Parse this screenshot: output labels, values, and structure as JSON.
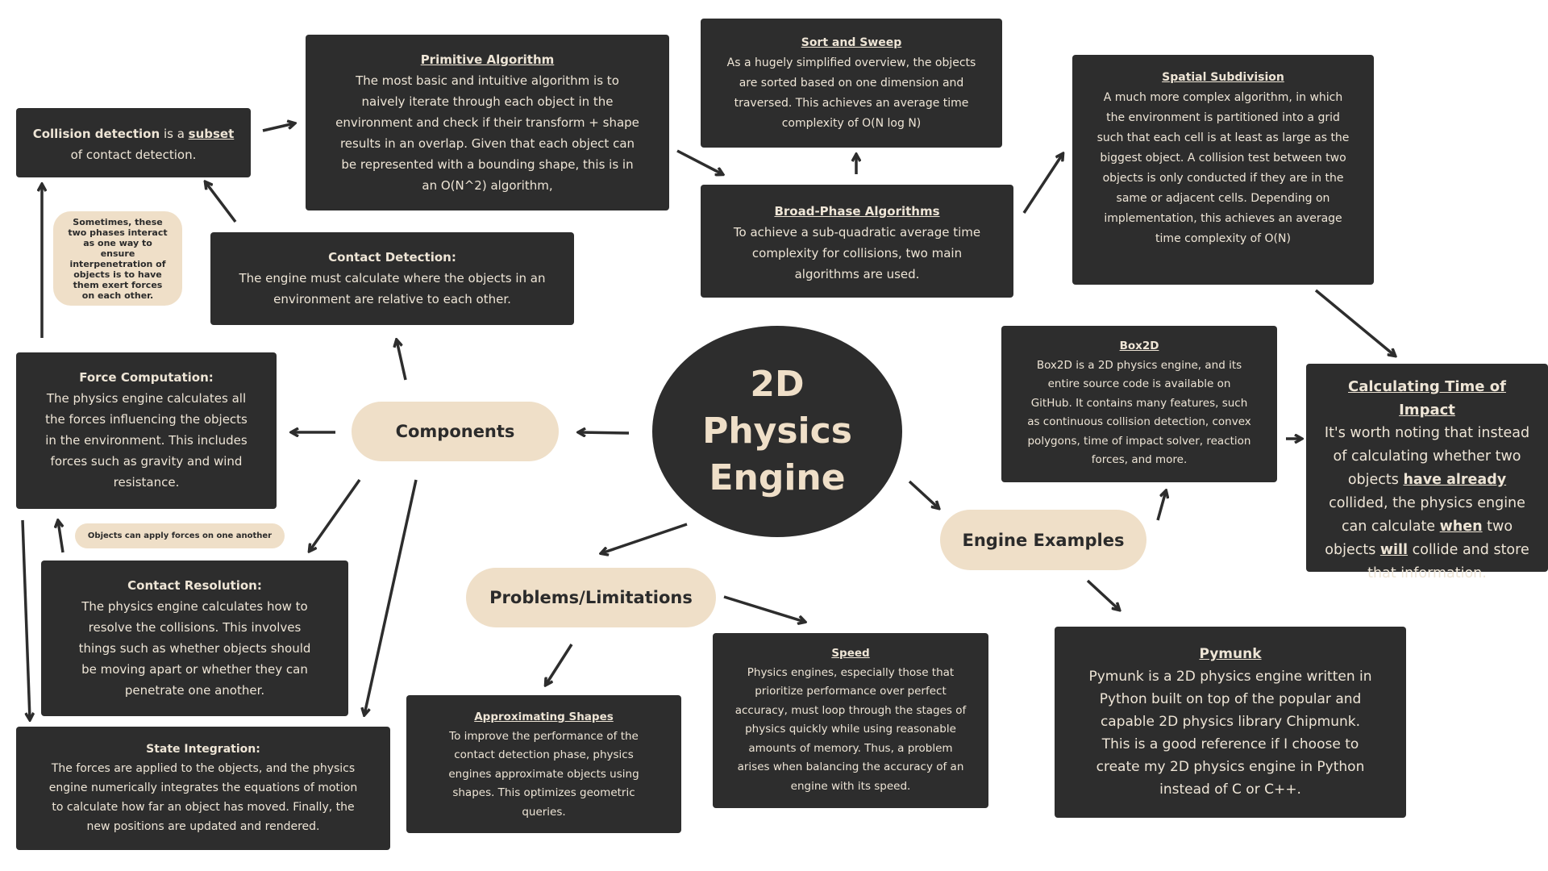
{
  "center": {
    "title": "2D Physics Engine"
  },
  "pills": {
    "components": "Components",
    "problems": "Problems/Limitations",
    "engine_examples": "Engine Examples"
  },
  "notes": {
    "phases": "Sometimes, these two phases interact as one way to ensure interpenetration of objects is to have them exert forces on each other.",
    "forces": "Objects can apply forces on one another"
  },
  "boxes": {
    "collision": {
      "bold1": "Collision detection",
      "mid": " is a ",
      "bold2": "subset",
      "rest": "of contact detection."
    },
    "primitive": {
      "title": "Primitive Algorithm",
      "body": "The most basic and intuitive algorithm is to naively iterate through each object in the environment and check if their transform + shape results in an overlap. Given that each object can be represented with a bounding shape, this is in an O(N^2) algorithm,"
    },
    "sort_sweep": {
      "title": "Sort and Sweep",
      "body": "As a hugely simplified overview, the objects are sorted based on one dimension and traversed. This achieves an average time complexity of O(N log N)"
    },
    "broad_phase": {
      "title": "Broad-Phase Algorithms",
      "body": "To achieve a sub-quadratic average time complexity for collisions, two main algorithms are used."
    },
    "spatial": {
      "title": "Spatial Subdivision",
      "body": "A much more complex algorithm, in which the environment is partitioned into a grid such that each cell is at least as large as the biggest object. A collision test between two objects is only conducted if they are in the same or adjacent cells. Depending on implementation, this achieves an average time complexity of O(N)"
    },
    "contact_detection": {
      "title": "Contact Detection:",
      "body": "The engine must calculate where the objects in an environment are relative to each other."
    },
    "force_computation": {
      "title": "Force Computation:",
      "body": "The physics engine calculates all the forces influencing the objects in the environment. This includes forces such as gravity and wind resistance."
    },
    "contact_resolution": {
      "title": "Contact Resolution:",
      "body": "The physics engine calculates how to resolve the collisions. This involves things such as whether objects should be moving apart or whether they can penetrate one another."
    },
    "state_integration": {
      "title": "State Integration:",
      "body": "The forces are applied to the objects, and the physics engine numerically integrates the equations of motion to calculate how far an object has moved. Finally, the new positions are updated and rendered."
    },
    "approx_shapes": {
      "title": "Approximating Shapes",
      "body": "To improve the performance of the contact detection phase, physics engines approximate objects using shapes. This optimizes geometric queries."
    },
    "speed": {
      "title": "Speed",
      "body": "Physics engines, especially those that prioritize performance over perfect accuracy, must loop through the stages of physics quickly while using reasonable amounts of memory. Thus, a problem arises when balancing the accuracy of an engine with its speed."
    },
    "box2d": {
      "title": "Box2D",
      "body": "Box2D is a 2D physics engine, and its entire source code is available on GitHub. It contains many features, such as continuous collision detection, convex polygons, time of impact solver, reaction forces, and more."
    },
    "pymunk": {
      "title": "Pymunk",
      "body": "Pymunk is a 2D physics engine written in Python built on top of the popular and capable 2D physics library Chipmunk. This is a good reference if I choose to create my 2D physics engine in Python instead of C or C++."
    },
    "toi": {
      "title": "Calculating Time of Impact",
      "p1": "It's worth noting that instead of calculating whether two objects ",
      "b1": "have already",
      "p2": " collided, the physics engine can calculate ",
      "b2": "when",
      "p3": " two objects ",
      "b3": "will",
      "p4": " collide and store that information."
    }
  }
}
